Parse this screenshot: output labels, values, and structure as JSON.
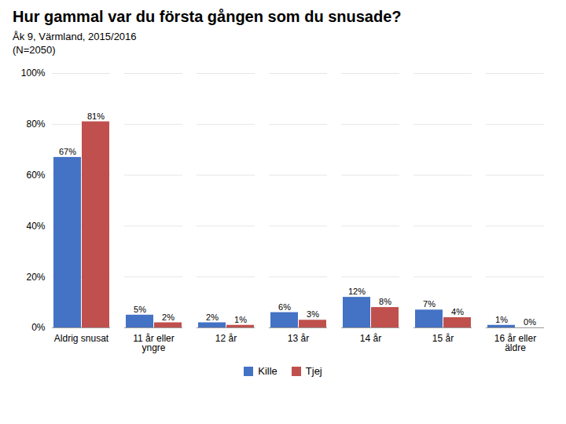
{
  "chart_data": {
    "type": "bar",
    "title": "Hur gammal var du första gången som du snusade?",
    "subtitle": [
      "Åk 9, Värmland, 2015/2016",
      "(N=2050)"
    ],
    "categories": [
      "Aldrig snusat",
      "11 år eller\nyngre",
      "12 år",
      "13 år",
      "14 år",
      "15 år",
      "16 år eller\näldre"
    ],
    "series": [
      {
        "name": "Kille",
        "color": "#4472C4",
        "values": [
          67,
          5,
          2,
          6,
          12,
          7,
          1
        ],
        "value_labels": [
          "67%",
          "5%",
          "2%",
          "6%",
          "12%",
          "7%",
          "1%"
        ]
      },
      {
        "name": "Tjej",
        "color": "#C0504D",
        "values": [
          81,
          2,
          1,
          3,
          8,
          4,
          0
        ],
        "value_labels": [
          "81%",
          "2%",
          "1%",
          "3%",
          "8%",
          "4%",
          "0%"
        ]
      }
    ],
    "ylim": [
      0,
      100
    ],
    "yticks": [
      {
        "value": 0,
        "label": "0%"
      },
      {
        "value": 20,
        "label": "20%"
      },
      {
        "value": 40,
        "label": "40%"
      },
      {
        "value": 60,
        "label": "60%"
      },
      {
        "value": 80,
        "label": "80%"
      },
      {
        "value": 100,
        "label": "100%"
      }
    ],
    "grid": true,
    "legend": "bottom",
    "data_labels": true
  }
}
